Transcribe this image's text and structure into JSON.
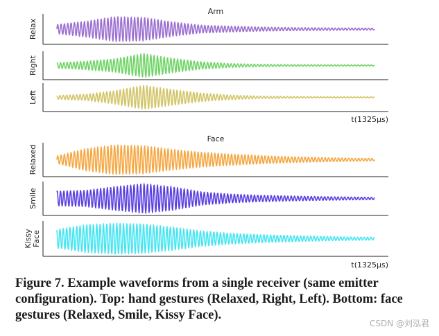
{
  "chart_data": [
    {
      "type": "line",
      "title": "Arm",
      "xlabel": "t(1325μs)",
      "axis_scale": "none (tick labels not shown)",
      "series": [
        {
          "name": "Relax",
          "color": "#9b6fd0",
          "envelope": [
            0.35,
            0.6,
            0.95,
            0.9,
            0.55,
            0.3,
            0.22,
            0.16,
            0.12,
            0.1,
            0.08,
            0.07
          ],
          "burst_center": 0.11
        },
        {
          "name": "Right",
          "color": "#6fd465",
          "envelope": [
            0.22,
            0.35,
            0.55,
            1.0,
            0.6,
            0.3,
            0.16,
            0.1,
            0.07,
            0.06,
            0.05,
            0.05
          ],
          "burst_center": 0.11
        },
        {
          "name": "Left",
          "color": "#d2c567",
          "envelope": [
            0.15,
            0.25,
            0.55,
            1.0,
            0.65,
            0.35,
            0.18,
            0.1,
            0.07,
            0.05,
            0.04,
            0.04
          ],
          "burst_center": 0.11
        }
      ]
    },
    {
      "type": "line",
      "title": "Face",
      "xlabel": "t(1325μs)",
      "axis_scale": "none (tick labels not shown)",
      "series": [
        {
          "name": "Relaxed",
          "color": "#f5a742",
          "envelope": [
            0.25,
            0.75,
            1.0,
            0.95,
            0.7,
            0.5,
            0.38,
            0.28,
            0.2,
            0.15,
            0.11,
            0.08
          ],
          "burst_center": 0.2
        },
        {
          "name": "Smile",
          "color": "#5a40e0",
          "envelope": [
            0.5,
            0.55,
            0.8,
            1.0,
            0.8,
            0.45,
            0.3,
            0.22,
            0.17,
            0.13,
            0.1,
            0.08
          ],
          "burst_center": 0.2
        },
        {
          "name": "Kissy Face",
          "color": "#45e6f2",
          "envelope": [
            0.6,
            0.9,
            1.0,
            0.95,
            0.75,
            0.5,
            0.35,
            0.26,
            0.2,
            0.15,
            0.11,
            0.09
          ],
          "burst_center": 0.2
        }
      ]
    }
  ],
  "caption": "Figure 7. Example waveforms from a single receiver (same emitter configuration). Top: hand gestures (Relaxed, Right, Left). Bottom: face gestures (Relaxed, Smile, Kissy Face).",
  "watermark": "CSDN @刘泓君"
}
